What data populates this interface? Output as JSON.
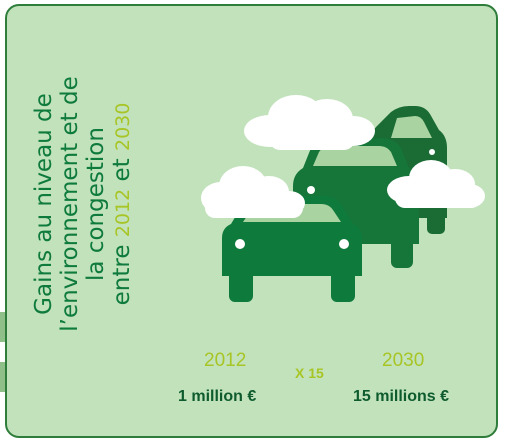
{
  "title": {
    "line1": "Gains au niveau de",
    "line2": "l’environnement et de",
    "line3": "la congestion",
    "line4_prefix": "entre ",
    "year_start": "2012",
    "connector": " et ",
    "year_end": "2030"
  },
  "comparison": {
    "left_year": "2012",
    "left_value": "1 million €",
    "multiplier": "X 15",
    "right_year": "2030",
    "right_value": "15 millions €"
  },
  "colors": {
    "card_background": "#c2e2bc",
    "card_border": "#2e7d3b",
    "car_dark": "#0e7a3c",
    "car_back": "#1a6b34",
    "highlight": "#a8c526",
    "cloud": "#ffffff"
  },
  "illustration": {
    "icons": [
      "car-icon",
      "car-icon",
      "car-icon",
      "cloud-icon",
      "cloud-icon",
      "cloud-icon"
    ]
  }
}
